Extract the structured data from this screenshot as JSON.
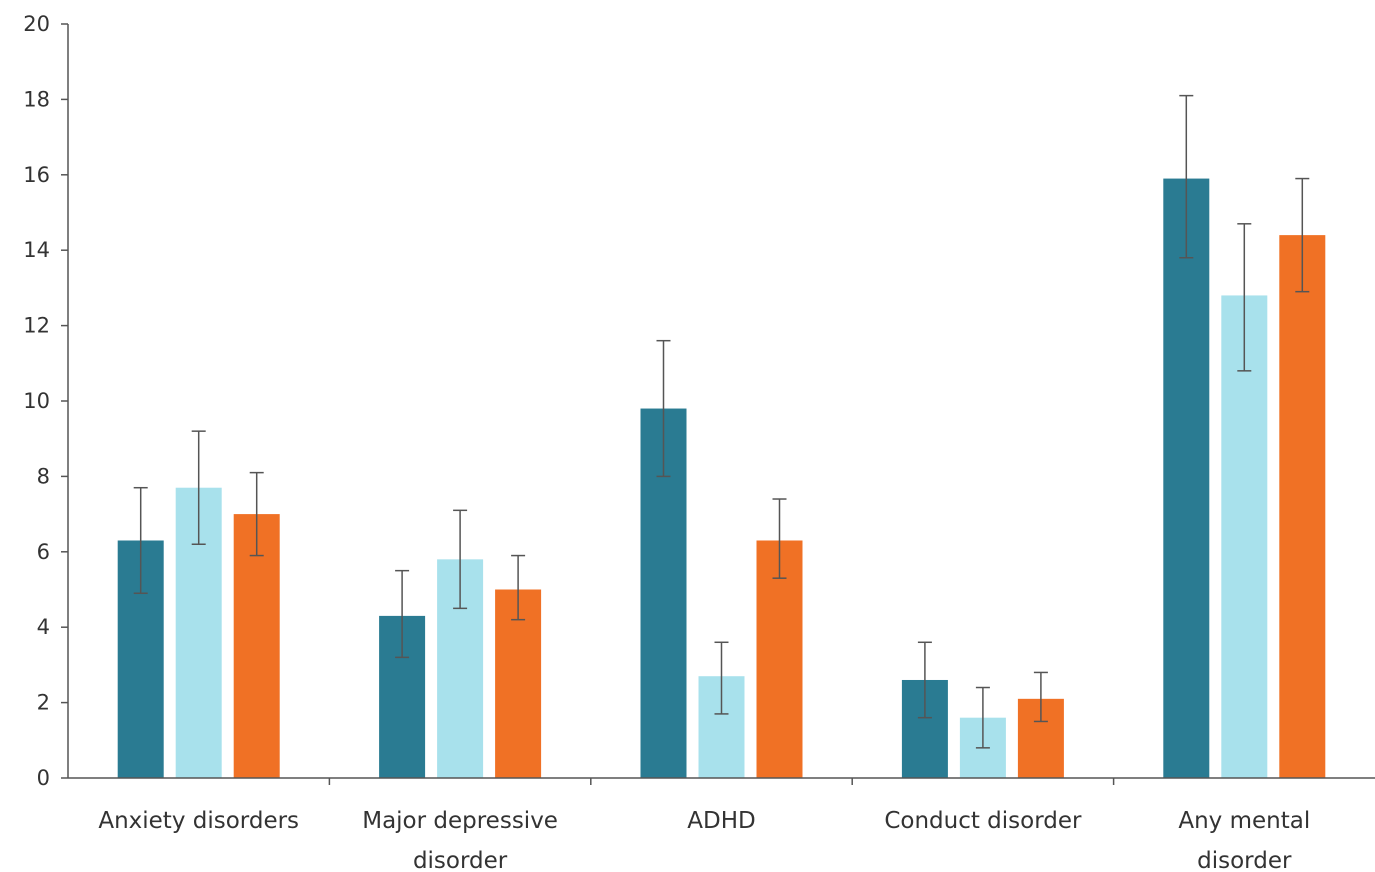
{
  "chart_data": {
    "type": "bar",
    "title": "",
    "xlabel": "",
    "ylabel": "",
    "ylim": [
      0,
      20
    ],
    "yticks": [
      "0",
      "2",
      "4",
      "6",
      "8",
      "10",
      "12",
      "14",
      "16",
      "18",
      "20"
    ],
    "grid": false,
    "legend": "none",
    "categories": [
      [
        "Anxiety disorders"
      ],
      [
        "Major depressive",
        "disorder"
      ],
      [
        "ADHD"
      ],
      [
        "Conduct disorder"
      ],
      [
        "Any mental",
        "disorder"
      ]
    ],
    "series": [
      {
        "color": "#2a7b92",
        "values": [
          6.3,
          4.3,
          9.8,
          2.6,
          15.9
        ],
        "error_low": [
          4.9,
          3.2,
          8.0,
          1.6,
          13.8
        ],
        "error_high": [
          7.7,
          5.5,
          11.6,
          3.6,
          18.1
        ]
      },
      {
        "color": "#a8e1ec",
        "values": [
          7.7,
          5.8,
          2.7,
          1.6,
          12.8
        ],
        "error_low": [
          6.2,
          4.5,
          1.7,
          0.8,
          10.8
        ],
        "error_high": [
          9.2,
          7.1,
          3.6,
          2.4,
          14.7
        ]
      },
      {
        "color": "#f07125",
        "values": [
          7.0,
          5.0,
          6.3,
          2.1,
          14.4
        ],
        "error_low": [
          5.9,
          4.2,
          5.3,
          1.5,
          12.9
        ],
        "error_high": [
          8.1,
          5.9,
          7.4,
          2.8,
          15.9
        ]
      }
    ]
  }
}
